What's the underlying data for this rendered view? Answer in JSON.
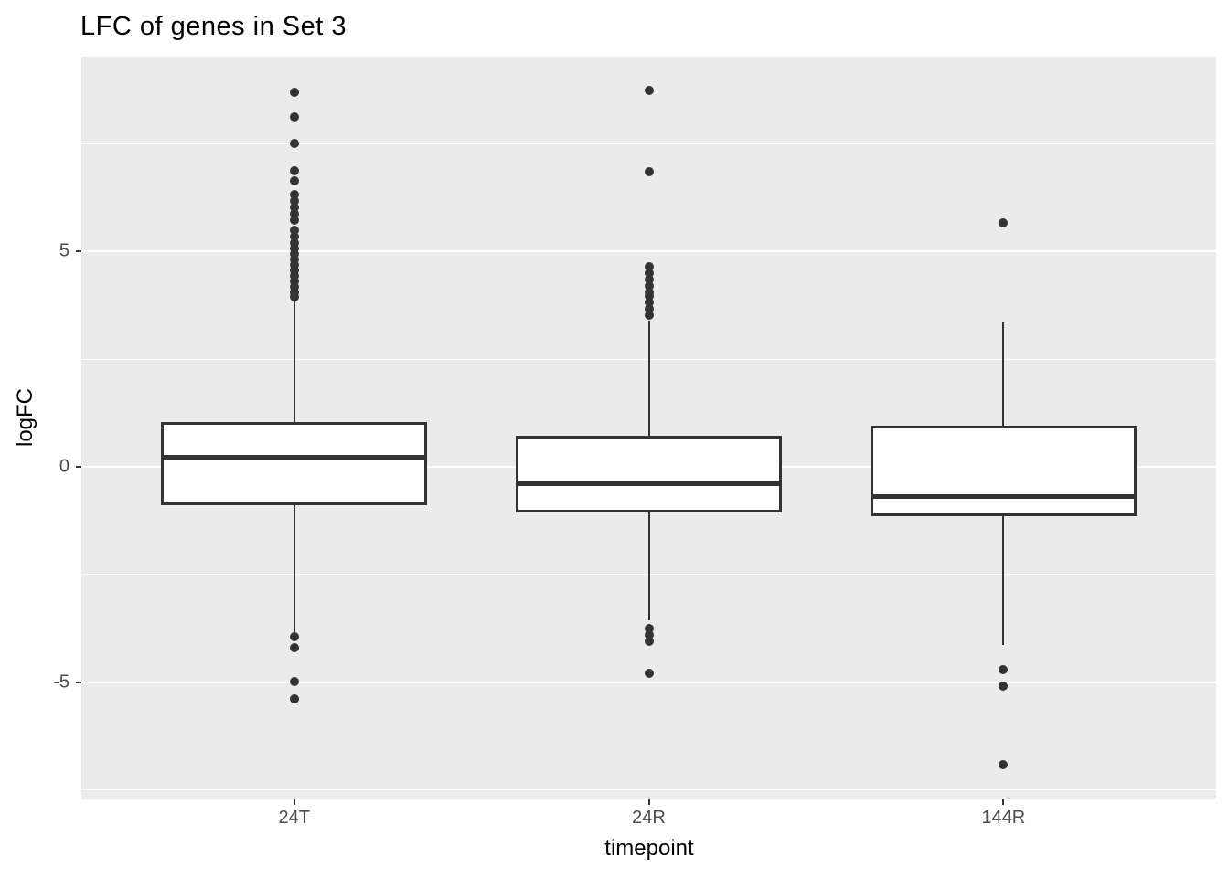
{
  "chart_data": {
    "type": "boxplot",
    "title": "LFC of genes in Set 3",
    "xlabel": "timepoint",
    "ylabel": "logFC",
    "categories": [
      "24T",
      "24R",
      "144R"
    ],
    "ylim": [
      -7.72,
      9.52
    ],
    "yticks": [
      {
        "value": 5,
        "label": "5"
      },
      {
        "value": 0,
        "label": "0"
      },
      {
        "value": -5,
        "label": "-5"
      }
    ],
    "minor_gridlines": [
      7.5,
      2.5,
      -2.5,
      -7.5
    ],
    "grid": "white major+minor horizontal gridlines on grey panel, no vertical gridlines",
    "legend": "none",
    "series": [
      {
        "label": "24T",
        "whisker_low": -3.85,
        "q1": -0.9,
        "median": 0.23,
        "q3": 1.04,
        "whisker_high": 3.9,
        "outliers": [
          8.69,
          8.12,
          7.5,
          6.86,
          6.63,
          6.32,
          6.17,
          6.02,
          5.87,
          5.73,
          5.49,
          5.34,
          5.19,
          5.06,
          4.94,
          4.81,
          4.68,
          4.56,
          4.43,
          4.3,
          4.17,
          4.05,
          3.94,
          -3.95,
          -4.2,
          -4.99,
          -5.38
        ]
      },
      {
        "label": "24R",
        "whisker_low": -3.57,
        "q1": -1.06,
        "median": -0.39,
        "q3": 0.73,
        "whisker_high": 3.4,
        "outliers": [
          8.73,
          6.85,
          4.65,
          4.5,
          4.35,
          4.2,
          4.05,
          3.97,
          3.82,
          3.67,
          3.52,
          -3.75,
          -3.9,
          -4.05,
          -4.79
        ]
      },
      {
        "label": "144R",
        "whisker_low": -4.14,
        "q1": -1.15,
        "median": -0.7,
        "q3": 0.95,
        "whisker_high": 3.34,
        "outliers": [
          5.67,
          -4.7,
          -5.08,
          -6.91
        ]
      }
    ],
    "colors": {
      "panel_bg": "#EBEBEB",
      "gridline": "#FFFFFF",
      "box_fill": "#FFFFFF",
      "box_line": "#333333",
      "outlier": "#333333",
      "tick_text": "#4D4D4D",
      "title_text": "#000000"
    }
  }
}
